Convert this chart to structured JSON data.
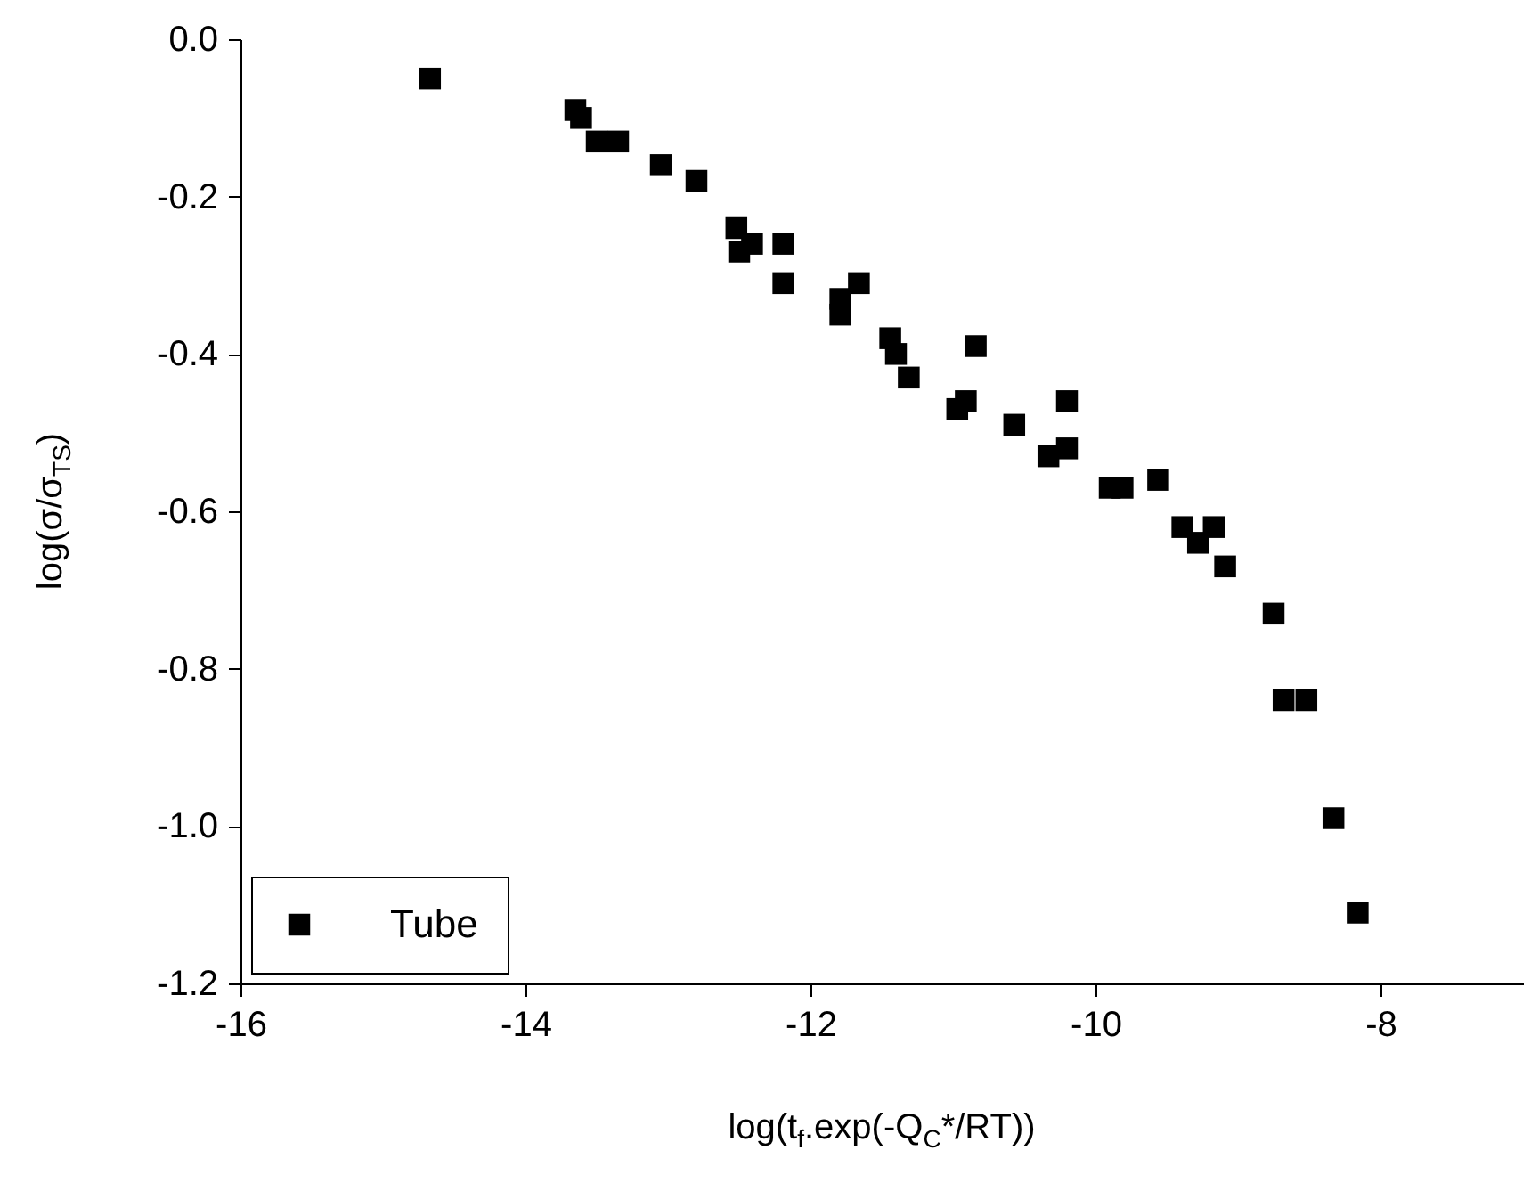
{
  "chart_data": {
    "type": "scatter",
    "xlabel": "log(t$_{f}$.exp(-Q$_{C}$*/RT))",
    "ylabel": "log(σ/σ$_{TS}$)",
    "xlim": [
      -16,
      -7
    ],
    "xticks": [
      -16,
      -14,
      -12,
      -10,
      -8
    ],
    "ylim": [
      -1.2,
      0
    ],
    "yticks": [
      {
        "value": 0,
        "label": "0.0"
      },
      -0.2,
      -0.4,
      -0.6,
      -0.8,
      {
        "value": -1,
        "label": "-1.0"
      },
      -1.2
    ],
    "marker": "square",
    "legend": "bottom left",
    "series": [
      {
        "name": "Tube",
        "color": "#000000",
        "x": [
          -14.67,
          -13.65,
          -13.61,
          -13.5,
          -13.35,
          -13.05,
          -12.8,
          -12.52,
          -12.41,
          -12.5,
          -12.19,
          -12.19,
          -11.66,
          -11.79,
          -11.79,
          -11.44,
          -11.4,
          -11.31,
          -10.84,
          -10.97,
          -10.91,
          -10.2,
          -10.57,
          -10.33,
          -10.2,
          -9.9,
          -9.81,
          -9.56,
          -9.39,
          -9.17,
          -9.28,
          -9.09,
          -8.75,
          -8.68,
          -8.52,
          -8.33,
          -8.16
        ],
        "values": [
          -0.05,
          -0.09,
          -0.1,
          -0.13,
          -0.13,
          -0.16,
          -0.18,
          -0.24,
          -0.26,
          -0.27,
          -0.26,
          -0.31,
          -0.31,
          -0.33,
          -0.35,
          -0.38,
          -0.4,
          -0.43,
          -0.39,
          -0.47,
          -0.46,
          -0.46,
          -0.49,
          -0.53,
          -0.52,
          -0.57,
          -0.57,
          -0.56,
          -0.62,
          -0.62,
          -0.64,
          -0.67,
          -0.73,
          -0.84,
          -0.84,
          -0.99,
          -1.11
        ]
      }
    ]
  }
}
